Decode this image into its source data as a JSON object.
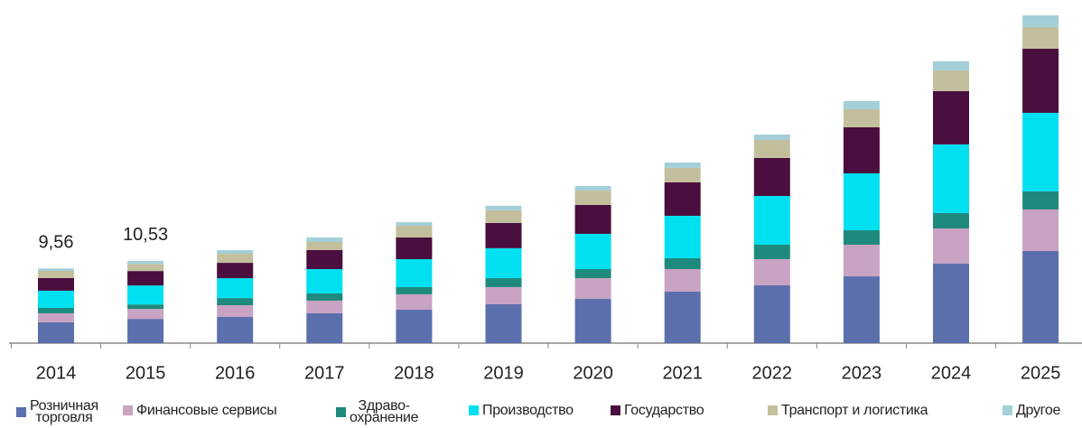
{
  "chart_data": {
    "type": "stacked_bar",
    "categories": [
      "2014",
      "2015",
      "2016",
      "2017",
      "2018",
      "2019",
      "2020",
      "2021",
      "2022",
      "2023",
      "2024",
      "2025"
    ],
    "series": [
      {
        "name": "Розничная\nторговля",
        "color": "#5b6fad",
        "values": [
          2.66,
          3.1,
          3.35,
          3.82,
          4.28,
          4.97,
          5.66,
          6.59,
          7.4,
          8.55,
          10.17,
          11.79
        ]
      },
      {
        "name": "Финансовые сервисы",
        "color": "#c9a3c3",
        "values": [
          1.16,
          1.27,
          1.5,
          1.62,
          1.97,
          2.2,
          2.66,
          2.89,
          3.35,
          4.05,
          4.51,
          5.32
        ]
      },
      {
        "name": "Здраво-\nохранение",
        "color": "#1e8a7e",
        "values": [
          0.69,
          0.58,
          0.92,
          0.92,
          0.92,
          1.16,
          1.16,
          1.39,
          1.85,
          1.85,
          1.97,
          2.31
        ]
      },
      {
        "name": "Производство",
        "color": "#00e0f0",
        "values": [
          2.2,
          2.43,
          2.54,
          3.12,
          3.58,
          3.82,
          4.51,
          5.43,
          6.24,
          7.28,
          8.79,
          10.06
        ]
      },
      {
        "name": "Государство",
        "color": "#4a0f3e",
        "values": [
          1.62,
          1.85,
          1.97,
          2.43,
          2.77,
          3.24,
          3.7,
          4.28,
          4.86,
          5.9,
          6.82,
          8.21
        ]
      },
      {
        "name": "Транспорт и логистика",
        "color": "#c3bf9c",
        "values": [
          0.92,
          0.92,
          1.16,
          1.04,
          1.5,
          1.62,
          1.85,
          1.85,
          2.31,
          2.31,
          2.66,
          2.77
        ]
      },
      {
        "name": "Другое",
        "color": "#a3cfd8",
        "values": [
          0.31,
          0.38,
          0.46,
          0.58,
          0.46,
          0.58,
          0.58,
          0.69,
          0.69,
          1.04,
          1.16,
          1.5
        ]
      }
    ],
    "annotations": [
      {
        "label": "9,56",
        "value": 9.56
      },
      {
        "label": "10,53",
        "value": 10.53
      }
    ],
    "ylim": [
      0,
      43
    ]
  }
}
